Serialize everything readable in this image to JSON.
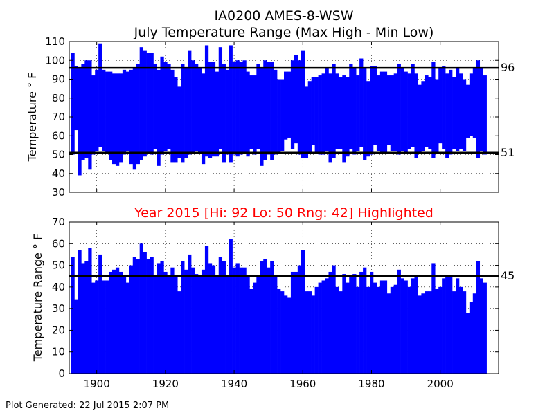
{
  "station_title": "IA0200 AMES-8-WSW",
  "subtitle": "July Temperature Range (Max High - Min Low)",
  "highlight_title": "Year 2015 [Hi: 92 Lo: 50 Rng: 42] Highlighted",
  "footer": "Plot Generated: 22 Jul 2015 2:07 PM",
  "colors": {
    "bars": "#0000ff",
    "highlight": "#ff0000",
    "reference": "#000000"
  },
  "chart_data": [
    {
      "type": "bar",
      "ylabel": "Temperature ° F",
      "xlim": [
        1892,
        2017
      ],
      "ylim": [
        30,
        110
      ],
      "yticks": [
        30,
        40,
        50,
        60,
        70,
        80,
        90,
        100,
        110
      ],
      "xticks": [
        1900,
        1920,
        1940,
        1960,
        1980,
        2000
      ],
      "grid": true,
      "reference_lines": [
        {
          "value": 96,
          "label": "96"
        },
        {
          "value": 51,
          "label": "51"
        }
      ],
      "highlight_year": 2015,
      "years_start": 1893,
      "highs": [
        104,
        97,
        96,
        98,
        100,
        100,
        92,
        95,
        109,
        95,
        94,
        94,
        93,
        93,
        93,
        95,
        94,
        95,
        96,
        98,
        107,
        105,
        104,
        104,
        98,
        95,
        102,
        99,
        98,
        95,
        91,
        86,
        98,
        96,
        105,
        100,
        98,
        96,
        93,
        108,
        99,
        99,
        94,
        107,
        98,
        95,
        108,
        99,
        100,
        99,
        100,
        94,
        92,
        92,
        98,
        96,
        100,
        99,
        99,
        95,
        90,
        90,
        94,
        94,
        100,
        103,
        100,
        105,
        86,
        89,
        91,
        91,
        92,
        93,
        96,
        93,
        98,
        93,
        91,
        92,
        91,
        98,
        96,
        92,
        101,
        96,
        89,
        97,
        97,
        92,
        94,
        94,
        92,
        92,
        93,
        98,
        96,
        94,
        93,
        98,
        93,
        87,
        89,
        92,
        91,
        99,
        90,
        96,
        97,
        93,
        95,
        91,
        96,
        93,
        90,
        87,
        93,
        96,
        100,
        96,
        92
      ],
      "lows": [
        50,
        63,
        39,
        47,
        48,
        42,
        50,
        52,
        54,
        52,
        51,
        47,
        45,
        44,
        46,
        50,
        52,
        45,
        42,
        45,
        47,
        49,
        51,
        50,
        53,
        44,
        50,
        52,
        53,
        46,
        46,
        48,
        46,
        48,
        50,
        51,
        52,
        51,
        45,
        49,
        48,
        49,
        49,
        53,
        46,
        50,
        46,
        50,
        49,
        50,
        51,
        49,
        53,
        50,
        53,
        44,
        47,
        50,
        47,
        50,
        51,
        52,
        58,
        59,
        53,
        56,
        50,
        48,
        48,
        51,
        55,
        51,
        50,
        50,
        52,
        46,
        48,
        53,
        53,
        46,
        49,
        53,
        50,
        52,
        54,
        47,
        49,
        50,
        55,
        52,
        51,
        51,
        55,
        52,
        52,
        50,
        52,
        51,
        53,
        54,
        48,
        51,
        52,
        54,
        53,
        48,
        51,
        56,
        53,
        48,
        50,
        53,
        52,
        53,
        52,
        59,
        60,
        59,
        48,
        52,
        50
      ],
      "ranges": [
        54,
        34,
        57,
        51,
        52,
        58,
        42,
        43,
        55,
        43,
        43,
        47,
        48,
        49,
        47,
        45,
        42,
        50,
        54,
        53,
        60,
        56,
        53,
        54,
        45,
        51,
        52,
        47,
        45,
        49,
        45,
        38,
        52,
        48,
        55,
        49,
        46,
        45,
        48,
        59,
        51,
        50,
        45,
        54,
        52,
        45,
        62,
        49,
        51,
        49,
        49,
        45,
        39,
        42,
        45,
        52,
        53,
        49,
        52,
        45,
        39,
        38,
        36,
        35,
        47,
        47,
        50,
        57,
        38,
        38,
        36,
        40,
        42,
        43,
        44,
        47,
        50,
        40,
        38,
        46,
        42,
        45,
        46,
        40,
        47,
        49,
        40,
        47,
        42,
        40,
        43,
        43,
        37,
        40,
        41,
        48,
        44,
        43,
        40,
        44,
        45,
        36,
        37,
        38,
        38,
        51,
        39,
        40,
        44,
        45,
        45,
        38,
        44,
        40,
        38,
        28,
        33,
        37,
        52,
        44,
        42
      ]
    },
    {
      "type": "bar",
      "ylabel": "Temperature Range ° F",
      "xlim": [
        1892,
        2017
      ],
      "ylim": [
        0,
        70
      ],
      "yticks": [
        0,
        10,
        20,
        30,
        40,
        50,
        60,
        70
      ],
      "xticks": [
        1900,
        1920,
        1940,
        1960,
        1980,
        2000
      ],
      "grid": true,
      "reference_lines": [
        {
          "value": 45,
          "label": "45"
        }
      ],
      "highlight_year": 2015
    }
  ]
}
